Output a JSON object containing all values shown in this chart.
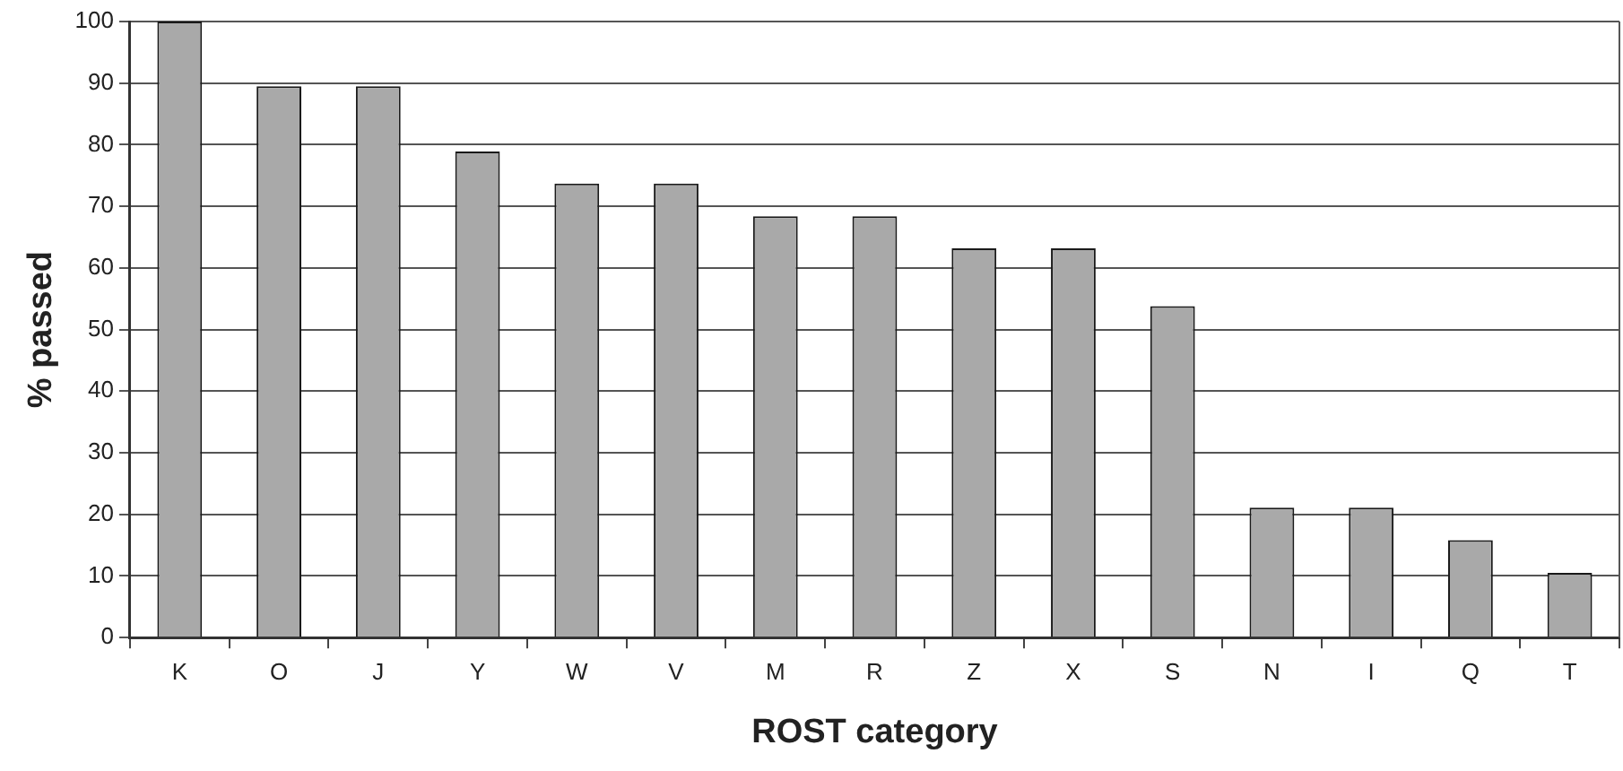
{
  "chart_data": {
    "type": "bar",
    "xlabel": "ROST category",
    "ylabel": "% passed",
    "categories": [
      "K",
      "O",
      "J",
      "Y",
      "W",
      "V",
      "M",
      "R",
      "Z",
      "X",
      "S",
      "N",
      "I",
      "Q",
      "T"
    ],
    "values": [
      100,
      89.5,
      89.5,
      78.9,
      73.7,
      73.7,
      68.4,
      68.4,
      63.2,
      63.2,
      53.8,
      21.1,
      21.1,
      15.8,
      10.5
    ],
    "color": "#a9a9a9",
    "ylim": [
      0,
      100
    ],
    "yticks": [
      0,
      10,
      20,
      30,
      40,
      50,
      60,
      70,
      80,
      90,
      100
    ],
    "grid": "y"
  }
}
